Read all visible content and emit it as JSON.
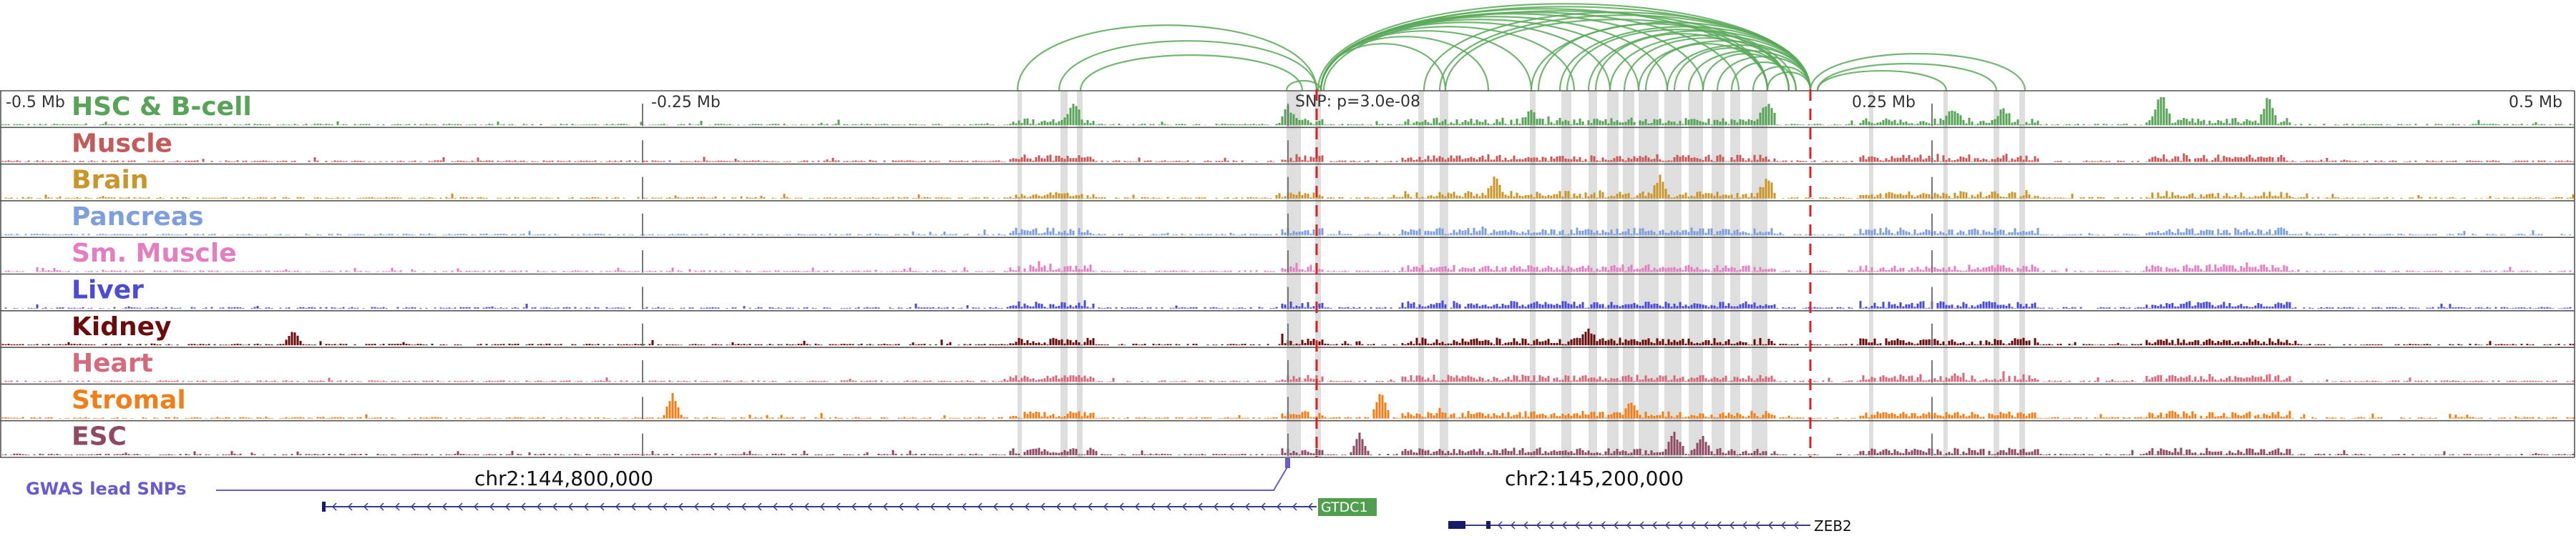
{
  "ruler": {
    "tick_labels": [
      "-0.5 Mb",
      "-0.25 Mb",
      "0.25 Mb",
      "0.5 Mb"
    ],
    "snp_label": "SNP: p=3.0e-08"
  },
  "tracks": [
    {
      "label": "HSC & B-cell",
      "color": "#57a357"
    },
    {
      "label": "Muscle",
      "color": "#c55a5a"
    },
    {
      "label": "Brain",
      "color": "#c9962a"
    },
    {
      "label": "Pancreas",
      "color": "#7f9fdc"
    },
    {
      "label": "Sm. Muscle",
      "color": "#e37fc0"
    },
    {
      "label": "Liver",
      "color": "#4b4bd6"
    },
    {
      "label": "Kidney",
      "color": "#6b0c0c"
    },
    {
      "label": "Heart",
      "color": "#d46a7c"
    },
    {
      "label": "Stromal",
      "color": "#f07f19"
    },
    {
      "label": "ESC",
      "color": "#8f4a63"
    }
  ],
  "coordinates": [
    "chr2:144,800,000",
    "chr2:145,200,000"
  ],
  "gwas": {
    "label": "GWAS lead SNPs",
    "color": "#6a5acd"
  },
  "genes": [
    {
      "name": "GTDC1",
      "strand": "-"
    },
    {
      "name": "ZEB2",
      "strand": "-"
    }
  ],
  "colors": {
    "loops": "#5aa95a",
    "snp_marker": "#e02020",
    "highlight": "#d3d3d3"
  }
}
